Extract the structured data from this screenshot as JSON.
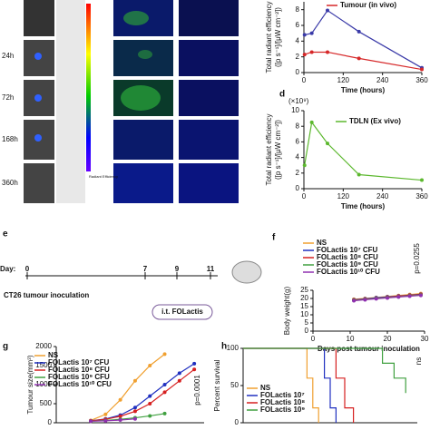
{
  "panels": {
    "labels": [
      "d",
      "e",
      "f",
      "g",
      "h"
    ],
    "times": [
      "24h",
      "72h",
      "168h",
      "360h"
    ],
    "colorbar_title": "Radiant Efficiency",
    "timeline": {
      "day": "Day:",
      "days": [
        "0",
        "7",
        "9",
        "11"
      ],
      "event": "CT26 tumour inoculation",
      "treatment": "i.t. FOLactis"
    }
  },
  "chart_data": [
    {
      "type": "line",
      "x_label": "Time (hours)",
      "y_label": [
        "Total radiant efficiency",
        "([p s⁻¹]/[μW cm⁻²])"
      ],
      "x": [
        2,
        24,
        72,
        168,
        360
      ],
      "xlim": [
        0,
        360
      ],
      "xticks": [
        0,
        120,
        240,
        360
      ],
      "ylim": [
        0,
        9
      ],
      "yticks": [
        0,
        2,
        4,
        6,
        8
      ],
      "series": [
        {
          "color": "#3a3aa8",
          "values": [
            4.8,
            5.0,
            7.9,
            5.2,
            0.6
          ]
        },
        {
          "name": "Tumour (in vivo)",
          "color": "#d62728",
          "values": [
            2.3,
            2.6,
            2.6,
            1.8,
            0.4
          ]
        }
      ]
    },
    {
      "type": "line",
      "x_label": "Time (hours)",
      "y_label": [
        "Total radiant efficiency",
        "([p s⁻¹]/[μW cm⁻²])"
      ],
      "y_unit": "(×10⁹)",
      "x": [
        2,
        24,
        72,
        168,
        360
      ],
      "xlim": [
        0,
        360
      ],
      "xticks": [
        0,
        120,
        240,
        360
      ],
      "ylim": [
        0,
        10
      ],
      "yticks": [
        0,
        2,
        4,
        6,
        8,
        10
      ],
      "series": [
        {
          "name": "TDLN (Ex vivo)",
          "color": "#5cb82e",
          "values": [
            3.0,
            8.5,
            5.8,
            1.8,
            1.1
          ]
        }
      ]
    },
    {
      "type": "line",
      "x_label": "Days post tumour inoculation",
      "y_label": [
        "Body weight(g)"
      ],
      "annotation": "p=0.0255",
      "x": [
        11,
        14,
        17,
        20,
        23,
        26,
        29
      ],
      "xlim": [
        0,
        30
      ],
      "xticks": [
        0,
        10,
        20,
        30
      ],
      "ylim": [
        0,
        25
      ],
      "yticks": [
        0,
        5,
        10,
        15,
        20,
        25
      ],
      "series": [
        {
          "name": "NS",
          "color": "#f0a030",
          "values": [
            19.5,
            20.0,
            20.6,
            21.2,
            21.8,
            22.4,
            23.0
          ]
        },
        {
          "name": "FOLactis 10⁷ CFU",
          "color": "#2030c0",
          "values": [
            19.2,
            19.8,
            20.4,
            21.0,
            21.5,
            22.0,
            22.6
          ]
        },
        {
          "name": "FOLactis 10⁸ CFU",
          "color": "#d62020",
          "values": [
            19.0,
            19.6,
            20.1,
            20.7,
            21.3,
            21.9,
            22.4
          ]
        },
        {
          "name": "FOLactis 10⁹ CFU",
          "color": "#40a040",
          "values": [
            18.8,
            19.4,
            20.0,
            20.5,
            21.0,
            21.6,
            22.1
          ]
        },
        {
          "name": "FOLactis 10¹⁰ CFU",
          "color": "#9030b0",
          "values": [
            18.6,
            19.2,
            19.8,
            20.3,
            20.9,
            21.4,
            21.9
          ]
        }
      ]
    },
    {
      "type": "line",
      "y_label": [
        "Tumour size(mm³)"
      ],
      "annotation": "p=0.0001",
      "xlim": [
        0,
        30
      ],
      "ylim": [
        0,
        2000
      ],
      "yticks": [
        0,
        500,
        1000,
        1500,
        2000
      ],
      "series": [
        {
          "name": "NS",
          "color": "#f0a030",
          "x": [
            7,
            10,
            13,
            16,
            19,
            22
          ],
          "values": [
            60,
            220,
            600,
            1100,
            1500,
            1800
          ]
        },
        {
          "name": "FOLactis 10⁷ CFU",
          "color": "#2030c0",
          "x": [
            7,
            10,
            13,
            16,
            19,
            22,
            25,
            28
          ],
          "values": [
            50,
            100,
            200,
            400,
            700,
            1000,
            1300,
            1550
          ]
        },
        {
          "name": "FOLactis 10⁸ CFU",
          "color": "#d62020",
          "x": [
            7,
            10,
            13,
            16,
            19,
            22,
            25,
            28
          ],
          "values": [
            50,
            90,
            170,
            300,
            500,
            800,
            1100,
            1400
          ]
        },
        {
          "name": "FOLactis 10⁹ CFU",
          "color": "#40a040",
          "x": [
            7,
            10,
            13,
            16,
            19,
            22
          ],
          "values": [
            40,
            60,
            90,
            130,
            180,
            240
          ]
        },
        {
          "name": "FOLactis 10¹⁰ CFU",
          "color": "#9030b0",
          "x": [
            7,
            10,
            13,
            16
          ],
          "values": [
            40,
            50,
            70,
            100
          ]
        }
      ]
    },
    {
      "type": "line",
      "y_label": [
        "Percent survival"
      ],
      "annotation": "ns",
      "xlim": [
        0,
        60
      ],
      "ylim": [
        0,
        100
      ],
      "yticks": [
        0,
        50,
        100
      ],
      "series": [
        {
          "name": "NS",
          "color": "#f0a030",
          "x": [
            0,
            22,
            22,
            24,
            24,
            26,
            26
          ],
          "values": [
            100,
            100,
            60,
            60,
            20,
            20,
            0
          ]
        },
        {
          "name": "FOLactis 10⁷",
          "color": "#2030c0",
          "x": [
            0,
            28,
            28,
            30,
            30,
            32,
            32
          ],
          "values": [
            100,
            100,
            60,
            60,
            20,
            20,
            0
          ]
        },
        {
          "name": "FOLactis 10⁸",
          "color": "#d62020",
          "x": [
            0,
            32,
            32,
            35,
            35,
            38,
            38
          ],
          "values": [
            100,
            100,
            60,
            60,
            20,
            20,
            0
          ]
        },
        {
          "name": "FOLactis 10⁹",
          "color": "#40a040",
          "x": [
            0,
            48,
            48,
            52,
            52,
            56,
            56
          ],
          "values": [
            100,
            100,
            80,
            80,
            60,
            60,
            40
          ]
        }
      ]
    }
  ]
}
